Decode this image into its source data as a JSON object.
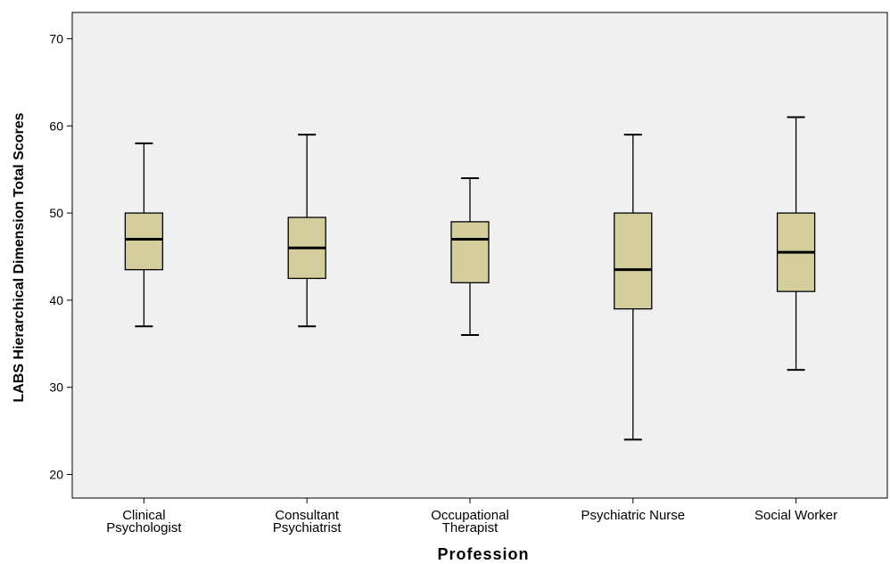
{
  "chart_data": {
    "type": "boxplot",
    "title": "",
    "xlabel": "Profession",
    "ylabel": "LABS Hierarchical Dimension Total Scores",
    "ylim": [
      18,
      73
    ],
    "yticks": [
      20,
      30,
      40,
      50,
      60,
      70
    ],
    "grid": false,
    "categories": [
      {
        "label_lines": [
          "Clinical",
          "Psychologist"
        ],
        "min": 37,
        "q1": 43.5,
        "median": 47,
        "q3": 50,
        "max": 58
      },
      {
        "label_lines": [
          "Consultant",
          "Psychiatrist"
        ],
        "min": 37,
        "q1": 42.5,
        "median": 46,
        "q3": 49.5,
        "max": 59
      },
      {
        "label_lines": [
          "Occupational",
          "Therapist"
        ],
        "min": 36,
        "q1": 42,
        "median": 47,
        "q3": 49,
        "max": 54
      },
      {
        "label_lines": [
          "Psychiatric Nurse"
        ],
        "min": 24,
        "q1": 39,
        "median": 43.5,
        "q3": 50,
        "max": 59
      },
      {
        "label_lines": [
          "Social Worker"
        ],
        "min": 32,
        "q1": 41,
        "median": 45.5,
        "q3": 50,
        "max": 61
      }
    ],
    "colors": {
      "plot_background": "#f0f0f0",
      "box_fill": "#d3ce9c",
      "line": "#000000"
    }
  }
}
